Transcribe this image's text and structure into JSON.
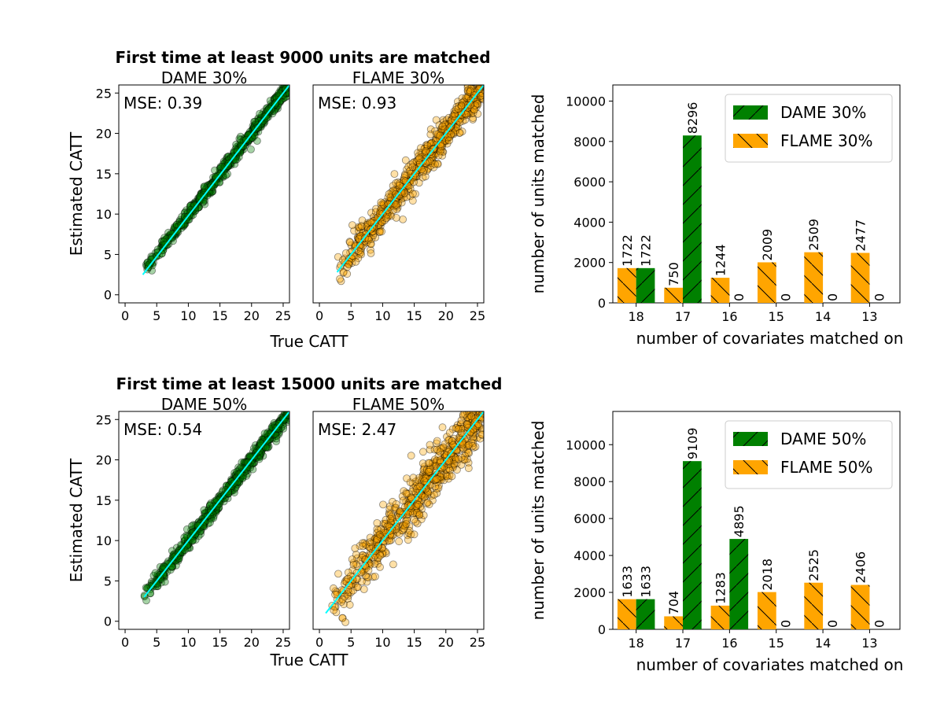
{
  "chart_data": [
    {
      "type": "scatter",
      "group_title": "First time at least 9000 units are matched",
      "title": "DAME 30%",
      "annotation": "MSE: 0.39",
      "ylabel": "Estimated CATT",
      "xlim": [
        -1,
        26
      ],
      "ylim": [
        -1,
        26
      ],
      "xticks": [
        0,
        5,
        10,
        15,
        20,
        25
      ],
      "yticks": [
        0,
        5,
        10,
        15,
        20,
        25
      ],
      "point_color": "#008000",
      "line_color": "#00ffff",
      "spread": 0.45,
      "x_range": [
        3,
        26
      ],
      "line": [
        [
          2.8,
          2.5
        ],
        [
          26,
          26
        ]
      ]
    },
    {
      "type": "scatter",
      "title": "FLAME 30%",
      "annotation": "MSE: 0.93",
      "xlim": [
        -1,
        26
      ],
      "ylim": [
        -1,
        26
      ],
      "xticks": [
        0,
        5,
        10,
        15,
        20,
        25
      ],
      "yticks": [],
      "point_color": "#ffa500",
      "line_color": "#00ffff",
      "spread": 1.0,
      "x_range": [
        2.8,
        26
      ],
      "line": [
        [
          2.8,
          2.8
        ],
        [
          26,
          26
        ]
      ]
    },
    {
      "type": "bar",
      "ylabel": "number of units matched",
      "xlabel": "number of covariates matched on",
      "categories": [
        "18",
        "17",
        "16",
        "15",
        "14",
        "13"
      ],
      "series": [
        {
          "name": "DAME 30%",
          "color": "#008000",
          "hatch": "/",
          "values": [
            1722,
            8296,
            0,
            0,
            0,
            0
          ],
          "labels": [
            "1722",
            "8296",
            "0",
            "0",
            "0",
            "0"
          ]
        },
        {
          "name": "FLAME 30%",
          "color": "#ffa500",
          "hatch": "\\",
          "values": [
            1722,
            750,
            1244,
            2009,
            2509,
            2477
          ],
          "labels": [
            "1722",
            "750",
            "1244",
            "2009",
            "2509",
            "2477"
          ]
        }
      ],
      "ylim": [
        0,
        10800
      ],
      "yticks": [
        0,
        2000,
        4000,
        6000,
        8000,
        10000
      ],
      "legend": "top-right"
    },
    {
      "type": "scatter",
      "group_title": "First time at least 15000 units are matched",
      "title": "DAME 50%",
      "annotation": "MSE: 0.54",
      "ylabel": "Estimated CATT",
      "xlim": [
        -1,
        26
      ],
      "ylim": [
        -1,
        26
      ],
      "xticks": [
        0,
        5,
        10,
        15,
        20,
        25
      ],
      "yticks": [
        0,
        5,
        10,
        15,
        20,
        25
      ],
      "point_color": "#008000",
      "line_color": "#00ffff",
      "spread": 0.5,
      "x_range": [
        3,
        26
      ],
      "line": [
        [
          3,
          3
        ],
        [
          26,
          26
        ]
      ]
    },
    {
      "type": "scatter",
      "title": "FLAME 50%",
      "annotation": "MSE: 2.47",
      "xlim": [
        -1,
        26
      ],
      "ylim": [
        -1,
        26
      ],
      "xticks": [
        0,
        5,
        10,
        15,
        20,
        25
      ],
      "yticks": [],
      "point_color": "#ffa500",
      "line_color": "#00ffff",
      "spread": 1.6,
      "x_range": [
        1.5,
        26
      ],
      "line": [
        [
          1,
          1
        ],
        [
          26,
          26
        ]
      ]
    },
    {
      "type": "bar",
      "ylabel": "number of units matched",
      "xlabel": "number of covariates matched on",
      "categories": [
        "18",
        "17",
        "16",
        "15",
        "14",
        "13"
      ],
      "series": [
        {
          "name": "DAME 50%",
          "color": "#008000",
          "hatch": "/",
          "values": [
            1633,
            9109,
            4895,
            0,
            0,
            0
          ],
          "labels": [
            "1633",
            "9109",
            "4895",
            "0",
            "0",
            "0"
          ]
        },
        {
          "name": "FLAME 50%",
          "color": "#ffa500",
          "hatch": "\\",
          "values": [
            1633,
            704,
            1283,
            2018,
            2525,
            2406
          ],
          "labels": [
            "1633",
            "704",
            "1283",
            "2018",
            "2525",
            "2406"
          ]
        }
      ],
      "ylim": [
        0,
        11800
      ],
      "yticks": [
        0,
        2000,
        4000,
        6000,
        8000,
        10000
      ],
      "legend": "top-right"
    }
  ],
  "shared_labels": {
    "row1_xlabel": "True CATT",
    "row2_xlabel": "True CATT"
  }
}
